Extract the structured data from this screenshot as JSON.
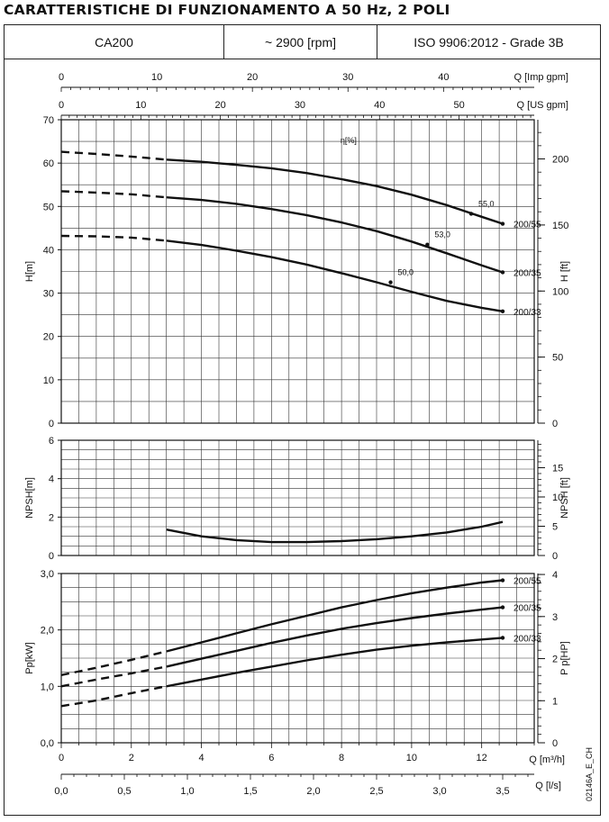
{
  "title": "CARATTERISTICHE DI FUNZIONAMENTO A 50 Hz, 2 POLI",
  "header": {
    "model": "CA200",
    "speed": "~ 2900 [rpm]",
    "standard": "ISO 9906:2012 - Grade 3B"
  },
  "doc_code": "02146A_E_CH",
  "chart_data": [
    {
      "type": "line",
      "title": "",
      "ylabel": "H[m]",
      "ylabel_right": "H [ft]",
      "xlabel_top_1": "Q [Imp gpm]",
      "xlabel_top_2": "Q [US gpm]",
      "ylim": [
        0,
        70
      ],
      "yticks": [
        "0",
        "10",
        "20",
        "30",
        "40",
        "50",
        "60",
        "70"
      ],
      "yticks_right": [
        "0",
        "50",
        "100",
        "150",
        "200"
      ],
      "x_top_imp_ticks": [
        "0",
        "10",
        "20",
        "30",
        "40"
      ],
      "x_top_us_ticks": [
        "0",
        "10",
        "20",
        "30",
        "40",
        "50"
      ],
      "xlim_m3h": [
        0,
        13.5
      ],
      "grid": true,
      "efficiency_label": "η[%]",
      "series": [
        {
          "name": "200/55",
          "x": [
            3.0,
            4,
            5,
            6,
            7,
            8,
            9,
            10,
            11,
            12,
            12.6
          ],
          "y": [
            60.8,
            60.3,
            59.6,
            58.8,
            57.7,
            56.3,
            54.7,
            52.7,
            50.3,
            47.6,
            46.0
          ],
          "extrap_x": [
            0,
            1,
            2,
            3
          ],
          "extrap_y": [
            62.6,
            62.1,
            61.5,
            60.8
          ]
        },
        {
          "name": "200/35",
          "x": [
            3.0,
            4,
            5,
            6,
            7,
            8,
            9,
            10,
            11,
            12,
            12.6
          ],
          "y": [
            52.1,
            51.5,
            50.6,
            49.4,
            48.0,
            46.3,
            44.3,
            41.9,
            39.2,
            36.4,
            34.8
          ],
          "extrap_x": [
            0,
            1,
            2,
            3
          ],
          "extrap_y": [
            53.5,
            53.2,
            52.8,
            52.1
          ]
        },
        {
          "name": "200/33",
          "x": [
            3.0,
            4,
            5,
            6,
            7,
            8,
            9,
            10,
            11,
            12,
            12.6
          ],
          "y": [
            42.1,
            41.1,
            39.8,
            38.3,
            36.6,
            34.6,
            32.5,
            30.3,
            28.2,
            26.6,
            25.8
          ],
          "extrap_x": [
            0,
            1,
            2,
            3
          ],
          "extrap_y": [
            43.2,
            43.1,
            42.8,
            42.1
          ]
        }
      ],
      "efficiency_points": [
        {
          "label": "55,0",
          "x": 11.7,
          "y": 48.3
        },
        {
          "label": "53,0",
          "x": 10.45,
          "y": 41.2
        },
        {
          "label": "50,0",
          "x": 9.4,
          "y": 32.5
        }
      ]
    },
    {
      "type": "line",
      "title": "",
      "ylabel": "NPSH[m]",
      "ylabel_right": "NPSH [ft]",
      "ylim": [
        0,
        6
      ],
      "yticks": [
        "0",
        "2",
        "4",
        "6"
      ],
      "yticks_right": [
        "0",
        "5",
        "10",
        "15"
      ],
      "grid": true,
      "series": [
        {
          "name": "NPSH",
          "x": [
            3.0,
            4,
            5,
            6,
            7,
            8,
            9,
            10,
            11,
            12,
            12.6
          ],
          "y": [
            1.35,
            1.0,
            0.8,
            0.7,
            0.7,
            0.75,
            0.85,
            1.0,
            1.2,
            1.5,
            1.75
          ]
        }
      ]
    },
    {
      "type": "line",
      "title": "",
      "ylabel": "Pp[kW]",
      "ylabel_right": "P p[HP]",
      "xlabel": "Q [m³/h]",
      "xlabel_2": "Q [l/s]",
      "ylim": [
        0,
        3
      ],
      "yticks": [
        "0,0",
        "1,0",
        "2,0",
        "3,0"
      ],
      "yticks_right": [
        "0",
        "1",
        "2",
        "3",
        "4"
      ],
      "xticks_m3h": [
        "0",
        "2",
        "4",
        "6",
        "8",
        "10",
        "12"
      ],
      "xticks_ls": [
        "0,0",
        "0,5",
        "1,0",
        "1,5",
        "2,0",
        "2,5",
        "3,0",
        "3,5"
      ],
      "grid": true,
      "series": [
        {
          "name": "200/55",
          "x": [
            3.0,
            4,
            5,
            6,
            7,
            8,
            9,
            10,
            11,
            12,
            12.6
          ],
          "y": [
            1.62,
            1.78,
            1.94,
            2.1,
            2.25,
            2.4,
            2.53,
            2.65,
            2.75,
            2.84,
            2.88
          ],
          "extrap_x": [
            0,
            1,
            2,
            3
          ],
          "extrap_y": [
            1.2,
            1.33,
            1.47,
            1.62
          ]
        },
        {
          "name": "200/35",
          "x": [
            3.0,
            4,
            5,
            6,
            7,
            8,
            9,
            10,
            11,
            12,
            12.6
          ],
          "y": [
            1.35,
            1.49,
            1.63,
            1.77,
            1.9,
            2.02,
            2.12,
            2.21,
            2.29,
            2.36,
            2.4
          ],
          "extrap_x": [
            0,
            1,
            2,
            3
          ],
          "extrap_y": [
            1.0,
            1.12,
            1.23,
            1.35
          ]
        },
        {
          "name": "200/33",
          "x": [
            3.0,
            4,
            5,
            6,
            7,
            8,
            9,
            10,
            11,
            12,
            12.6
          ],
          "y": [
            1.0,
            1.12,
            1.24,
            1.35,
            1.46,
            1.56,
            1.65,
            1.72,
            1.78,
            1.83,
            1.86
          ],
          "extrap_x": [
            0,
            1,
            2,
            3
          ],
          "extrap_y": [
            0.65,
            0.75,
            0.88,
            1.0
          ]
        }
      ]
    }
  ]
}
